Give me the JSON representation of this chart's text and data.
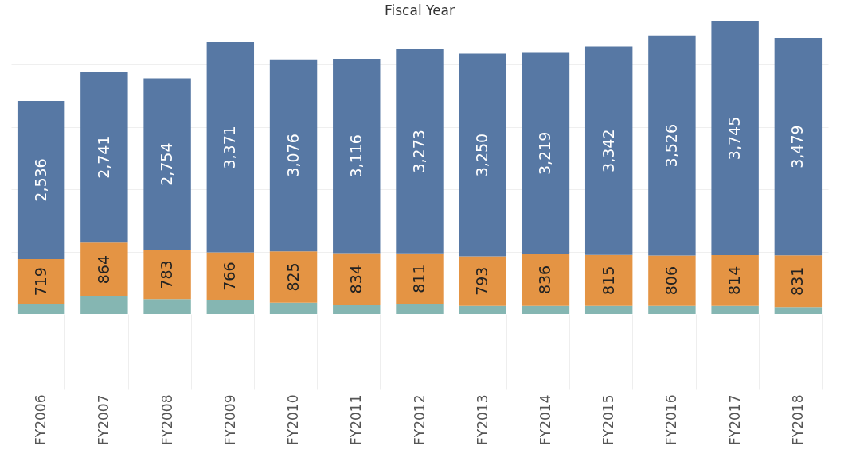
{
  "chart_data": {
    "type": "bar",
    "title": "Fiscal Year",
    "stacked": true,
    "categories": [
      "FY2006",
      "FY2007",
      "FY2008",
      "FY2009",
      "FY2010",
      "FY2011",
      "FY2012",
      "FY2013",
      "FY2014",
      "FY2015",
      "FY2016",
      "FY2017",
      "FY2018"
    ],
    "series": [
      {
        "color": "#85b6b2",
        "values": [
          160,
          280,
          240,
          220,
          180,
          140,
          160,
          130,
          130,
          130,
          130,
          130,
          110
        ]
      },
      {
        "color": "#e49444",
        "values": [
          719,
          864,
          783,
          766,
          825,
          834,
          811,
          793,
          836,
          815,
          806,
          814,
          831
        ],
        "value_labels": [
          "719",
          "864",
          "783",
          "766",
          "825",
          "834",
          "811",
          "793",
          "836",
          "815",
          "806",
          "814",
          "831"
        ]
      },
      {
        "color": "#5778a4",
        "values": [
          2536,
          2741,
          2754,
          3371,
          3076,
          3116,
          3273,
          3250,
          3219,
          3342,
          3526,
          3745,
          3479
        ],
        "value_labels": [
          "2,536",
          "2,741",
          "2,754",
          "3,371",
          "3,076",
          "3,116",
          "3,273",
          "3,250",
          "3,219",
          "3,342",
          "3,526",
          "3,745",
          "3,479"
        ]
      }
    ],
    "yticks": [
      {
        "value": 1000,
        "label": null
      },
      {
        "value": 2000,
        "label": null
      },
      {
        "value": 3000,
        "label": null
      },
      {
        "value": 4000,
        "label": null
      }
    ],
    "grid": "y",
    "tick_labels": "x",
    "legend": false
  }
}
